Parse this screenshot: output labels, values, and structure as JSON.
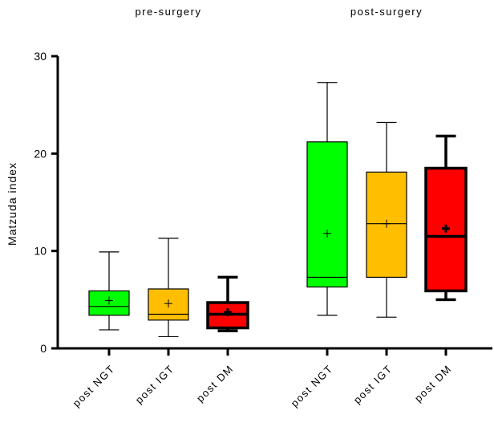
{
  "chart_data": {
    "type": "boxplot",
    "ylabel": "Matzuda index",
    "ylim": [
      0,
      30
    ],
    "yticks": [
      0,
      10,
      20,
      30
    ],
    "grid": false,
    "groups": [
      {
        "label": "pre-surgery"
      },
      {
        "label": "post-surgery"
      }
    ],
    "boxes": [
      {
        "category": "post NGT",
        "group": 0,
        "color": "#00ff00",
        "bold": false,
        "min": 1.9,
        "q1": 3.4,
        "median": 4.3,
        "q3": 5.9,
        "max": 9.9,
        "mean": 4.9
      },
      {
        "category": "post IGT",
        "group": 0,
        "color": "#ffbf00",
        "bold": false,
        "min": 1.2,
        "q1": 2.9,
        "median": 3.5,
        "q3": 6.1,
        "max": 11.3,
        "mean": 4.6
      },
      {
        "category": "post DM",
        "group": 0,
        "color": "#ff0000",
        "bold": true,
        "min": 1.8,
        "q1": 2.1,
        "median": 3.5,
        "q3": 4.7,
        "max": 7.3,
        "mean": 3.7
      },
      {
        "category": "post NGT",
        "group": 1,
        "color": "#00ff00",
        "bold": false,
        "min": 3.4,
        "q1": 6.3,
        "median": 7.3,
        "q3": 21.2,
        "max": 27.3,
        "mean": 11.8
      },
      {
        "category": "post IGT",
        "group": 1,
        "color": "#ffbf00",
        "bold": false,
        "min": 3.2,
        "q1": 7.3,
        "median": 12.8,
        "q3": 18.1,
        "max": 23.2,
        "mean": 12.8
      },
      {
        "category": "post DM",
        "group": 1,
        "color": "#ff0000",
        "bold": true,
        "min": 5.0,
        "q1": 5.9,
        "median": 11.5,
        "q3": 18.5,
        "max": 21.8,
        "mean": 12.3
      }
    ]
  }
}
